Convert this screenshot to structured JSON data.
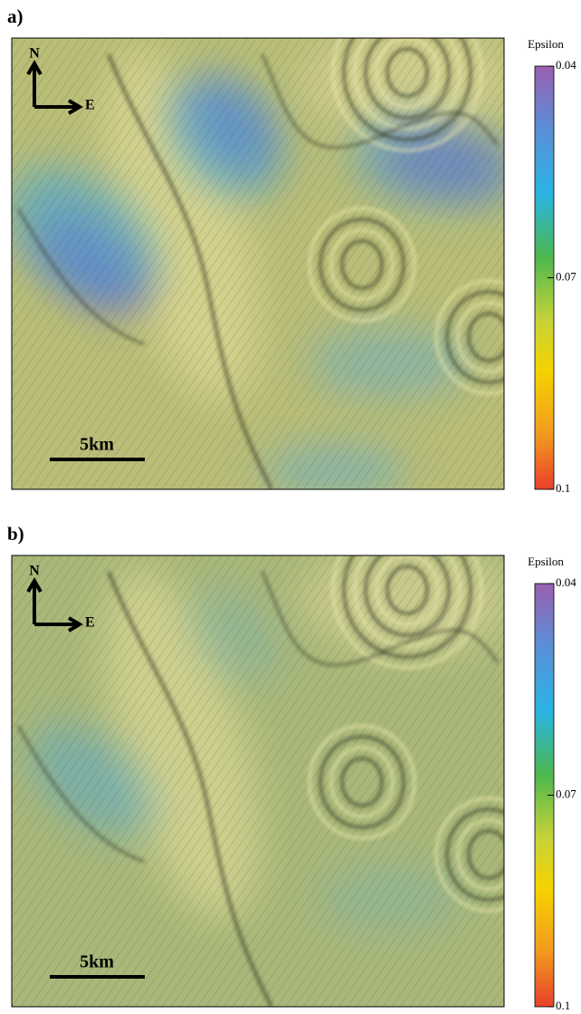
{
  "panels": [
    {
      "label": "a)",
      "colorbar": {
        "title": "Epsilon",
        "lim": [
          0.04,
          0.1
        ],
        "ticks": [
          0.04,
          0.07,
          0.1
        ]
      },
      "north": "N",
      "east": "E",
      "scale_bar": "5km"
    },
    {
      "label": "b)",
      "colorbar": {
        "title": "Epsilon",
        "lim": [
          0.04,
          0.1
        ],
        "ticks": [
          0.04,
          0.07,
          0.1
        ]
      },
      "north": "N",
      "east": "E",
      "scale_bar": "5km"
    }
  ]
}
